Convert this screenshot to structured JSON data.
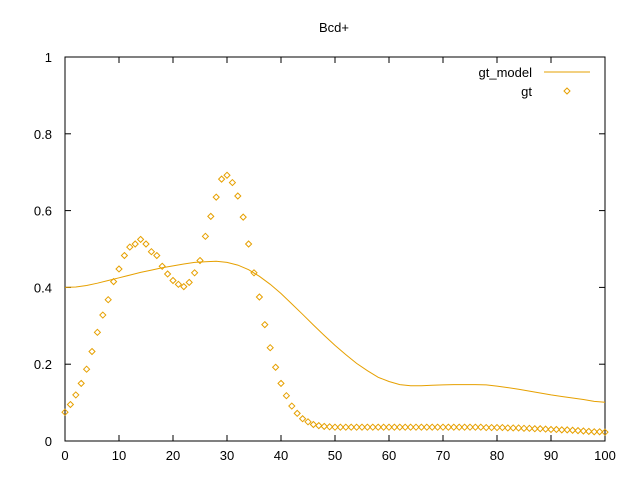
{
  "chart_data": {
    "type": "line",
    "title": "Bcd+",
    "xlabel": "",
    "ylabel": "",
    "xlim": [
      0,
      100
    ],
    "ylim": [
      0,
      1
    ],
    "x_ticks": [
      0,
      10,
      20,
      30,
      40,
      50,
      60,
      70,
      80,
      90,
      100
    ],
    "y_ticks": [
      0,
      0.2,
      0.4,
      0.6,
      0.8,
      1
    ],
    "y_tick_labels": [
      "0",
      "0.2",
      "0.4",
      "0.6",
      "0.8",
      "1"
    ],
    "grid": false,
    "legend_position": "top-right",
    "color": "#e6a000",
    "series": [
      {
        "name": "gt_model",
        "style": "line",
        "x": [
          0,
          2,
          4,
          6,
          8,
          10,
          12,
          14,
          16,
          18,
          20,
          22,
          24,
          26,
          28,
          30,
          32,
          34,
          36,
          38,
          40,
          42,
          44,
          46,
          48,
          50,
          52,
          54,
          56,
          58,
          60,
          62,
          64,
          66,
          68,
          70,
          72,
          74,
          76,
          78,
          80,
          82,
          84,
          86,
          88,
          90,
          92,
          94,
          96,
          98,
          100
        ],
        "y": [
          0.4,
          0.401,
          0.405,
          0.411,
          0.418,
          0.425,
          0.432,
          0.439,
          0.445,
          0.451,
          0.456,
          0.461,
          0.465,
          0.467,
          0.468,
          0.465,
          0.458,
          0.446,
          0.429,
          0.408,
          0.384,
          0.357,
          0.33,
          0.302,
          0.275,
          0.249,
          0.225,
          0.202,
          0.183,
          0.166,
          0.155,
          0.147,
          0.144,
          0.144,
          0.145,
          0.146,
          0.147,
          0.147,
          0.147,
          0.146,
          0.143,
          0.139,
          0.135,
          0.13,
          0.125,
          0.12,
          0.116,
          0.112,
          0.108,
          0.103,
          0.101
        ]
      },
      {
        "name": "gt",
        "style": "points",
        "x": [
          0,
          1,
          2,
          3,
          4,
          5,
          6,
          7,
          8,
          9,
          10,
          11,
          12,
          13,
          14,
          15,
          16,
          17,
          18,
          19,
          20,
          21,
          22,
          23,
          24,
          25,
          26,
          27,
          28,
          29,
          30,
          31,
          32,
          33,
          34,
          35,
          36,
          37,
          38,
          39,
          40,
          41,
          42,
          43,
          44,
          45,
          46,
          47,
          48,
          49,
          50,
          51,
          52,
          53,
          54,
          55,
          56,
          57,
          58,
          59,
          60,
          61,
          62,
          63,
          64,
          65,
          66,
          67,
          68,
          69,
          70,
          71,
          72,
          73,
          74,
          75,
          76,
          77,
          78,
          79,
          80,
          81,
          82,
          83,
          84,
          85,
          86,
          87,
          88,
          89,
          90,
          91,
          92,
          93,
          94,
          95,
          96,
          97,
          98,
          99,
          100
        ],
        "y": [
          0.075,
          0.095,
          0.12,
          0.15,
          0.187,
          0.233,
          0.283,
          0.328,
          0.368,
          0.415,
          0.448,
          0.483,
          0.505,
          0.513,
          0.525,
          0.513,
          0.493,
          0.483,
          0.455,
          0.435,
          0.418,
          0.408,
          0.402,
          0.413,
          0.438,
          0.47,
          0.533,
          0.585,
          0.635,
          0.682,
          0.692,
          0.673,
          0.638,
          0.583,
          0.513,
          0.438,
          0.375,
          0.303,
          0.243,
          0.192,
          0.15,
          0.118,
          0.091,
          0.072,
          0.058,
          0.05,
          0.043,
          0.04,
          0.038,
          0.037,
          0.036,
          0.036,
          0.036,
          0.036,
          0.036,
          0.036,
          0.036,
          0.036,
          0.036,
          0.036,
          0.036,
          0.036,
          0.036,
          0.036,
          0.036,
          0.036,
          0.036,
          0.036,
          0.036,
          0.036,
          0.036,
          0.036,
          0.036,
          0.036,
          0.036,
          0.036,
          0.036,
          0.036,
          0.035,
          0.035,
          0.035,
          0.035,
          0.034,
          0.034,
          0.034,
          0.033,
          0.033,
          0.032,
          0.032,
          0.031,
          0.03,
          0.03,
          0.029,
          0.029,
          0.028,
          0.027,
          0.026,
          0.025,
          0.024,
          0.024,
          0.023
        ]
      }
    ]
  }
}
